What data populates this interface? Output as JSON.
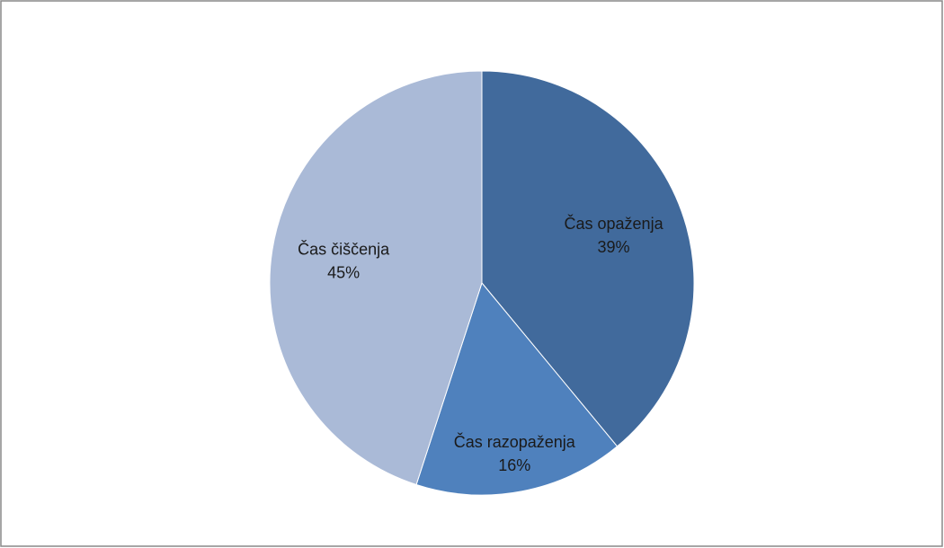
{
  "chart_data": {
    "type": "pie",
    "categories": [
      "Čas opaženja",
      "Čas razopaženja",
      "Čas čiščenja"
    ],
    "values": [
      39,
      16,
      45
    ],
    "value_labels": [
      "39%",
      "16%",
      "45%"
    ],
    "colors": [
      "#416a9c",
      "#4f81bd",
      "#aabad7"
    ]
  }
}
